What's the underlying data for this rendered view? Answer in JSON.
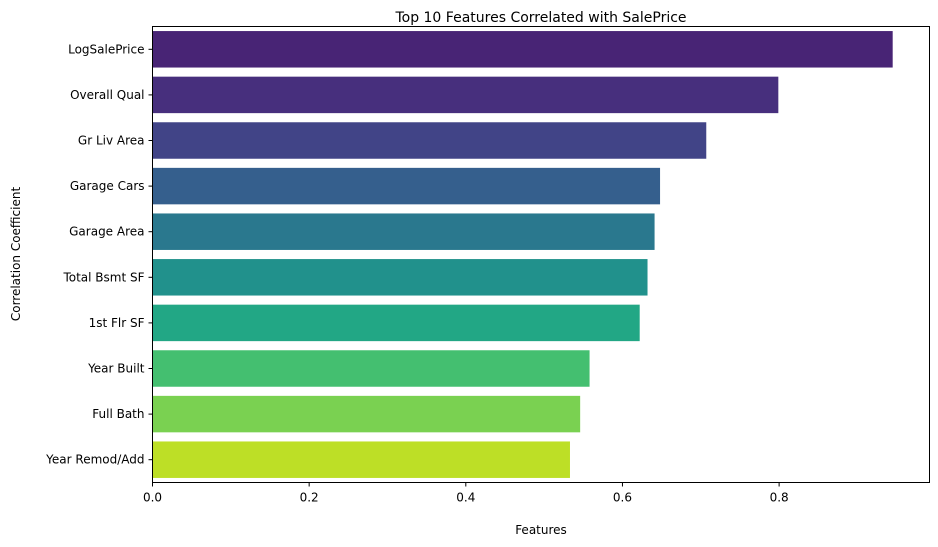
{
  "chart_data": {
    "type": "bar",
    "orientation": "horizontal",
    "title": "Top 10 Features Correlated with SalePrice",
    "xlabel": "Features",
    "ylabel": "Correlation Coefficient",
    "categories": [
      "LogSalePrice",
      "Overall Qual",
      "Gr Liv Area",
      "Garage Cars",
      "Garage Area",
      "Total Bsmt SF",
      "1st Flr SF",
      "Year Built",
      "Full Bath",
      "Year Remod/Add"
    ],
    "values": [
      0.945,
      0.799,
      0.707,
      0.648,
      0.641,
      0.632,
      0.622,
      0.558,
      0.546,
      0.533
    ],
    "colors": [
      "#482475",
      "#472f7d",
      "#414487",
      "#355f8d",
      "#2a788e",
      "#21918c",
      "#22a785",
      "#44bf70",
      "#7ad151",
      "#bddf26"
    ],
    "xlim": [
      0,
      0.992
    ],
    "xticks": [
      "0.0",
      "0.2",
      "0.4",
      "0.6",
      "0.8"
    ],
    "xtick_values": [
      0,
      0.2,
      0.4,
      0.6,
      0.8
    ],
    "grid": false,
    "legend": "none"
  }
}
